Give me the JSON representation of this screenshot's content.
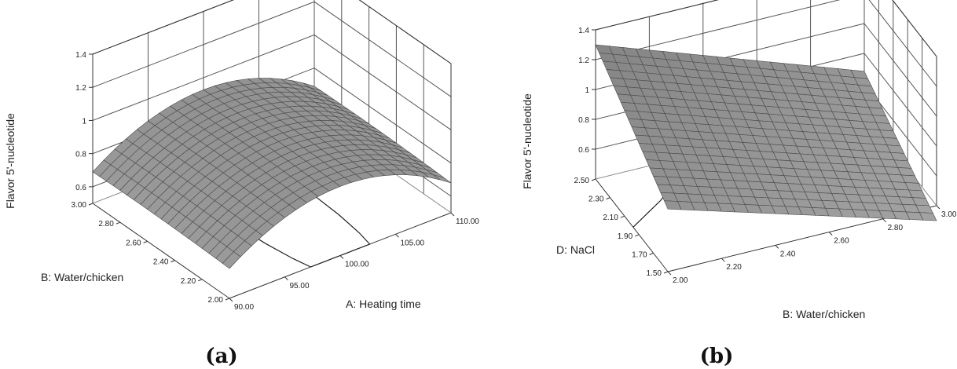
{
  "chart_data": [
    {
      "type": "surface3d",
      "caption": "(a)",
      "zlabel": "Flavor 5'-nucleotide",
      "xlabel": "A: Heating time",
      "ylabel": "B: Water/chicken",
      "x_ticks": [
        "90.00",
        "95.00",
        "100.00",
        "105.00",
        "110.00"
      ],
      "y_ticks": [
        "2.00",
        "2.20",
        "2.40",
        "2.60",
        "2.80",
        "3.00"
      ],
      "z_ticks": [
        "0.6",
        "0.8",
        "1",
        "1.2",
        "1.4"
      ],
      "xlim": [
        90,
        110
      ],
      "ylim": [
        2.0,
        3.0
      ],
      "zlim": [
        0.5,
        1.4
      ],
      "grid": true,
      "surface_colors": {
        "fill": "#8f8f8f",
        "mesh": "#4a4a4a",
        "contour": "#222222"
      }
    },
    {
      "type": "surface3d",
      "caption": "(b)",
      "zlabel": "Flavor 5'-nucleotide",
      "xlabel": "B: Water/chicken",
      "ylabel": "D: NaCl",
      "x_ticks": [
        "2.00",
        "2.20",
        "2.40",
        "2.60",
        "2.80",
        "3.00"
      ],
      "y_ticks": [
        "1.50",
        "1.70",
        "1.90",
        "2.10",
        "2.30",
        "2.50"
      ],
      "z_ticks": [
        "0.6",
        "0.8",
        "1",
        "1.2",
        "1.4"
      ],
      "xlim": [
        2.0,
        3.0
      ],
      "ylim": [
        1.5,
        2.5
      ],
      "zlim": [
        0.4,
        1.4
      ],
      "grid": true,
      "surface_colors": {
        "fill": "#8f8f8f",
        "mesh": "#4a4a4a",
        "contour": "#222222"
      }
    }
  ]
}
